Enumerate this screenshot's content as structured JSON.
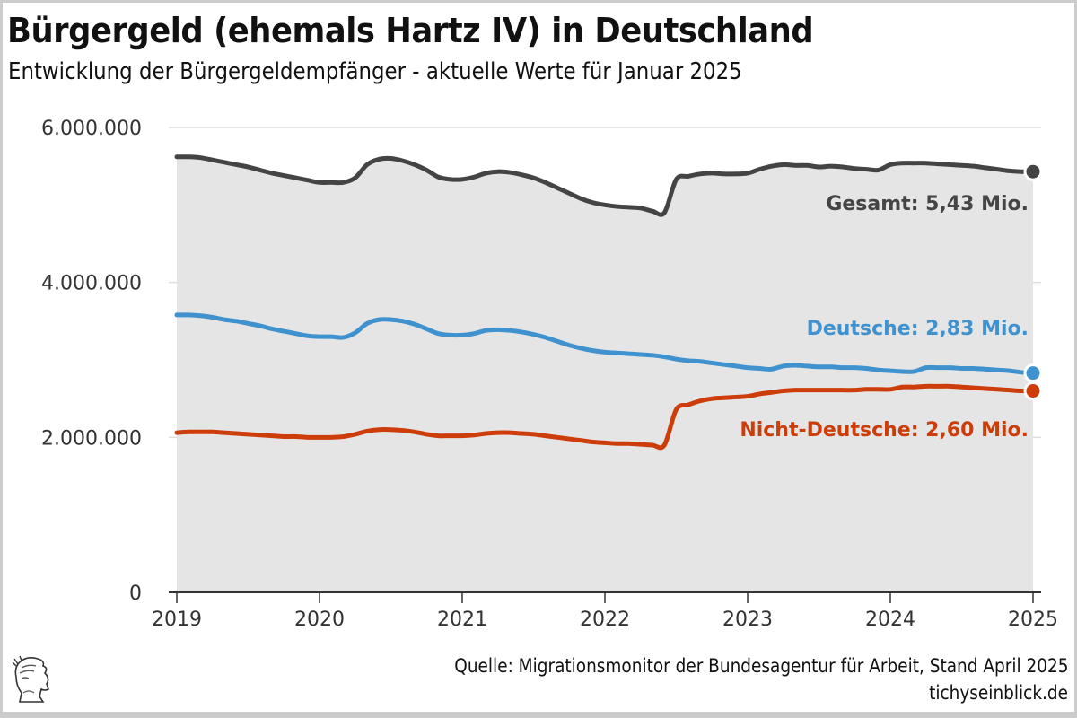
{
  "header": {
    "title": "Bürgergeld (ehemals Hartz IV) in Deutschland",
    "subtitle": "Entwicklung der Bürgergeldempfänger - aktuelle Werte für Januar 2025"
  },
  "footer": {
    "source": "Quelle: Migrationsmonitor der Bundesagentur für Arbeit, Stand April 2025",
    "site": "tichyseinblick.de",
    "logo_icon": "mercury-head-logo-icon"
  },
  "chart_data": {
    "type": "line",
    "title": "Bürgergeld (ehemals Hartz IV) in Deutschland",
    "subtitle": "Entwicklung der Bürgergeldempfänger - aktuelle Werte für Januar 2025",
    "xlabel": "",
    "ylabel": "",
    "x_start": 2019,
    "x_end": 2025,
    "x_step": "monthly (Jan 2019 – Jan 2025)",
    "xlim": [
      2019,
      2025
    ],
    "ylim": [
      0,
      6000000
    ],
    "x_ticks": [
      "2019",
      "2020",
      "2021",
      "2022",
      "2023",
      "2024",
      "2025"
    ],
    "y_ticks": [
      {
        "value": 0,
        "label": "0"
      },
      {
        "value": 2000000,
        "label": "2.000.000"
      },
      {
        "value": 4000000,
        "label": "4.000.000"
      },
      {
        "value": 6000000,
        "label": "6.000.000"
      }
    ],
    "grid": "horizontal",
    "area_fill_under": "Gesamt",
    "series": [
      {
        "name": "Gesamt",
        "color": "#444444",
        "end_label": "Gesamt: 5,43 Mio.",
        "values": [
          5620000,
          5620000,
          5610000,
          5580000,
          5550000,
          5520000,
          5490000,
          5450000,
          5410000,
          5380000,
          5350000,
          5320000,
          5290000,
          5290000,
          5290000,
          5350000,
          5520000,
          5590000,
          5600000,
          5570000,
          5520000,
          5450000,
          5360000,
          5330000,
          5330000,
          5360000,
          5410000,
          5430000,
          5420000,
          5390000,
          5350000,
          5290000,
          5220000,
          5150000,
          5080000,
          5030000,
          5000000,
          4980000,
          4970000,
          4960000,
          4920000,
          4900000,
          5330000,
          5370000,
          5400000,
          5410000,
          5400000,
          5400000,
          5410000,
          5460000,
          5500000,
          5520000,
          5510000,
          5510000,
          5490000,
          5500000,
          5490000,
          5470000,
          5460000,
          5450000,
          5520000,
          5540000,
          5540000,
          5540000,
          5530000,
          5520000,
          5510000,
          5500000,
          5480000,
          5460000,
          5440000,
          5430000,
          5430000
        ]
      },
      {
        "name": "Deutsche",
        "color": "#4092ce",
        "end_label": "Deutsche: 2,83 Mio.",
        "values": [
          3580000,
          3580000,
          3570000,
          3550000,
          3520000,
          3500000,
          3470000,
          3440000,
          3400000,
          3370000,
          3340000,
          3310000,
          3300000,
          3300000,
          3290000,
          3350000,
          3470000,
          3520000,
          3520000,
          3500000,
          3460000,
          3400000,
          3340000,
          3320000,
          3320000,
          3340000,
          3380000,
          3390000,
          3380000,
          3360000,
          3330000,
          3290000,
          3240000,
          3190000,
          3150000,
          3120000,
          3100000,
          3090000,
          3080000,
          3070000,
          3060000,
          3040000,
          3010000,
          2990000,
          2980000,
          2960000,
          2940000,
          2920000,
          2900000,
          2890000,
          2880000,
          2920000,
          2930000,
          2920000,
          2910000,
          2910000,
          2900000,
          2900000,
          2890000,
          2870000,
          2860000,
          2850000,
          2850000,
          2900000,
          2900000,
          2900000,
          2890000,
          2890000,
          2880000,
          2870000,
          2860000,
          2840000,
          2830000
        ]
      },
      {
        "name": "Nicht-Deutsche",
        "color": "#cc3d0a",
        "end_label": "Nicht-Deutsche: 2,60 Mio.",
        "values": [
          2060000,
          2070000,
          2070000,
          2070000,
          2060000,
          2050000,
          2040000,
          2030000,
          2020000,
          2010000,
          2010000,
          2000000,
          2000000,
          2000000,
          2010000,
          2040000,
          2080000,
          2100000,
          2100000,
          2090000,
          2070000,
          2040000,
          2020000,
          2020000,
          2020000,
          2030000,
          2050000,
          2060000,
          2060000,
          2050000,
          2040000,
          2020000,
          2000000,
          1980000,
          1960000,
          1940000,
          1930000,
          1920000,
          1920000,
          1910000,
          1900000,
          1900000,
          2360000,
          2420000,
          2470000,
          2500000,
          2510000,
          2520000,
          2530000,
          2560000,
          2580000,
          2600000,
          2610000,
          2610000,
          2610000,
          2610000,
          2610000,
          2610000,
          2620000,
          2620000,
          2620000,
          2650000,
          2650000,
          2660000,
          2660000,
          2660000,
          2650000,
          2640000,
          2630000,
          2620000,
          2610000,
          2600000,
          2600000
        ]
      }
    ]
  }
}
